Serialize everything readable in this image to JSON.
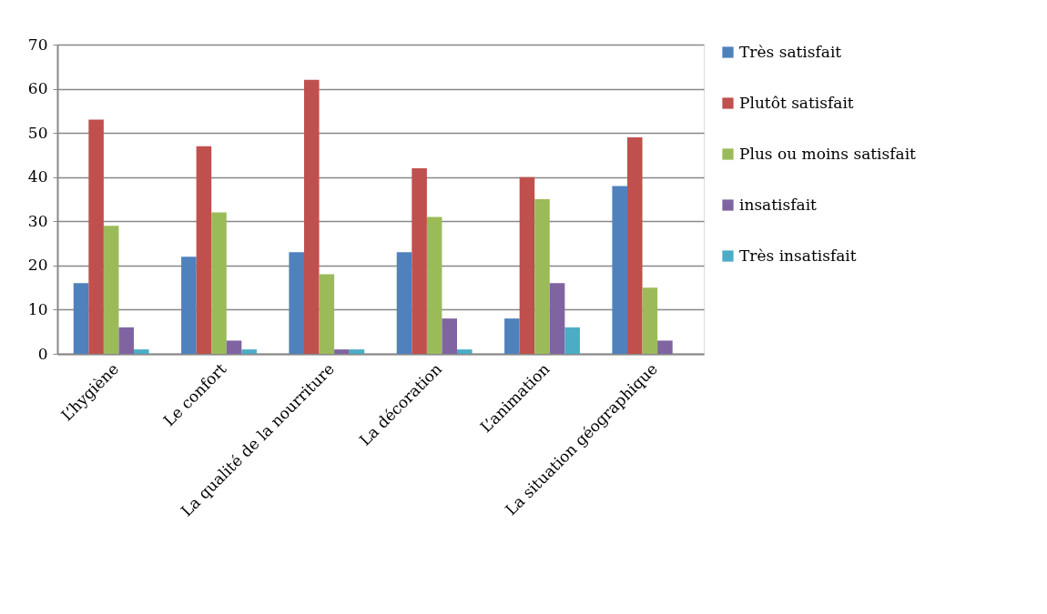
{
  "chart_data": {
    "type": "bar",
    "categories": [
      "L’hygiène",
      "Le confort",
      "La qualité de la nourriture",
      "La décoration",
      "L’animation",
      "La situation géographique"
    ],
    "series": [
      {
        "name": "Très satisfait",
        "color": "#4f81bd",
        "values": [
          16,
          22,
          23,
          23,
          8,
          38
        ]
      },
      {
        "name": "Plutôt satisfait",
        "color": "#c0504d",
        "values": [
          53,
          47,
          62,
          42,
          40,
          49
        ]
      },
      {
        "name": "Plus ou moins satisfait",
        "color": "#9bbb59",
        "values": [
          29,
          32,
          18,
          31,
          35,
          15
        ]
      },
      {
        "name": "insatisfait",
        "color": "#8064a2",
        "values": [
          6,
          3,
          1,
          8,
          16,
          3
        ]
      },
      {
        "name": "Très insatisfait",
        "color": "#4bacc6",
        "values": [
          1,
          1,
          1,
          1,
          6,
          0
        ]
      }
    ],
    "ylim": [
      0,
      70
    ],
    "yticks": [
      0,
      10,
      20,
      30,
      40,
      50,
      60,
      70
    ],
    "grid": "y",
    "legend": "right"
  }
}
